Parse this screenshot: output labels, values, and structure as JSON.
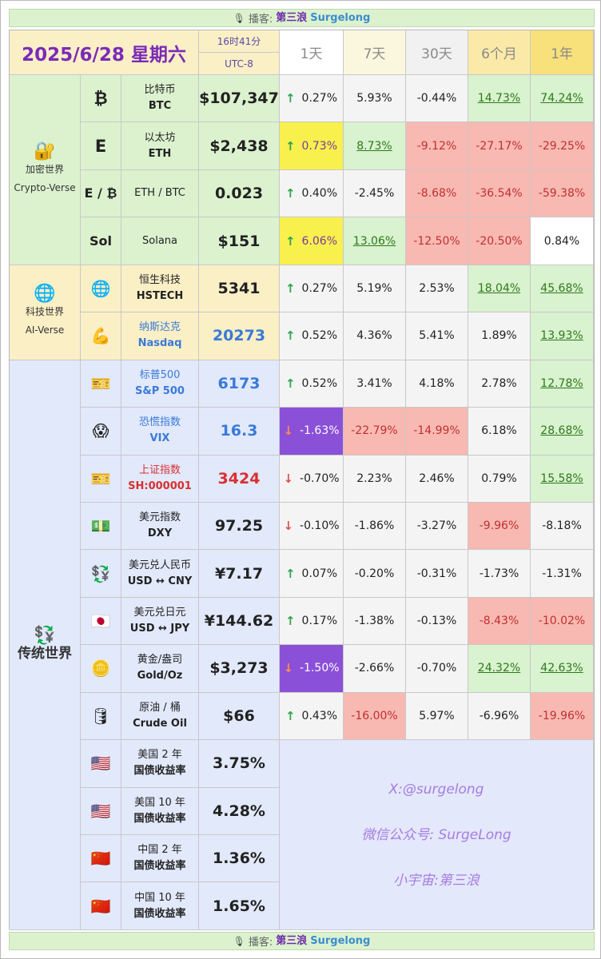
{
  "banner": {
    "mic": "🎙",
    "label": "播客:",
    "name": "第三浪",
    "en": "Surgelong"
  },
  "header": {
    "date": "2025/6/28 星期六",
    "time": "16时41分",
    "tz": "UTC-8",
    "periods": [
      "1天",
      "7天",
      "30天",
      "6个月",
      "1年"
    ]
  },
  "sections": {
    "crypto": {
      "icon": "🔐",
      "cn": "加密世界",
      "en": "Crypto-Verse"
    },
    "ai": {
      "icon": "🌐",
      "cn": "科技世界",
      "en": "AI-Verse"
    },
    "trad": {
      "icon": "💱",
      "cn": "传统世界"
    }
  },
  "rows": [
    {
      "icon": "₿",
      "cn": "比特币",
      "en": "BTC",
      "value": "$107,347",
      "changes": [
        "0.27%",
        "5.93%",
        "-0.44%",
        "14.73%",
        "74.24%"
      ],
      "dir": "up"
    },
    {
      "icon": "E",
      "cn": "以太坊",
      "en": "ETH",
      "value": "$2,438",
      "changes": [
        "0.73%",
        "8.73%",
        "-9.12%",
        "-27.17%",
        "-29.25%"
      ],
      "dir": "up"
    },
    {
      "icon": "E / ₿",
      "cn": "ETH / BTC",
      "en": "",
      "value": "0.023",
      "changes": [
        "0.40%",
        "-2.45%",
        "-8.68%",
        "-36.54%",
        "-59.38%"
      ],
      "dir": "up"
    },
    {
      "icon": "Sol",
      "cn": "Solana",
      "en": "",
      "value": "$151",
      "changes": [
        "6.06%",
        "13.06%",
        "-12.50%",
        "-20.50%",
        "0.84%"
      ],
      "dir": "up"
    },
    {
      "icon": "🌐",
      "cn": "恒生科技",
      "en": "HSTECH",
      "value": "5341",
      "changes": [
        "0.27%",
        "5.19%",
        "2.53%",
        "18.04%",
        "45.68%"
      ],
      "dir": "up"
    },
    {
      "icon": "💪",
      "cn": "纳斯达克",
      "en": "Nasdaq",
      "value": "20273",
      "changes": [
        "0.52%",
        "4.36%",
        "5.41%",
        "1.89%",
        "13.93%"
      ],
      "dir": "up"
    },
    {
      "icon": "🎫",
      "cn": "标普500",
      "en": "S&P 500",
      "value": "6173",
      "changes": [
        "0.52%",
        "3.41%",
        "4.18%",
        "2.78%",
        "12.78%"
      ],
      "dir": "up"
    },
    {
      "icon": "😱",
      "cn": "恐慌指数",
      "en": "VIX",
      "value": "16.3",
      "changes": [
        "-1.63%",
        "-22.79%",
        "-14.99%",
        "6.18%",
        "28.68%"
      ],
      "dir": "down"
    },
    {
      "icon": "🎫",
      "cn": "上证指数",
      "en": "SH:000001",
      "value": "3424",
      "changes": [
        "-0.70%",
        "2.23%",
        "2.46%",
        "0.79%",
        "15.58%"
      ],
      "dir": "down"
    },
    {
      "icon": "💵",
      "cn": "美元指数",
      "en": "DXY",
      "value": "97.25",
      "changes": [
        "-0.10%",
        "-1.86%",
        "-3.27%",
        "-9.96%",
        "-8.18%"
      ],
      "dir": "down"
    },
    {
      "icon": "💱",
      "cn": "美元兑人民币",
      "en": "USD ↔ CNY",
      "value": "¥7.17",
      "changes": [
        "0.07%",
        "-0.20%",
        "-0.31%",
        "-1.73%",
        "-1.31%"
      ],
      "dir": "up"
    },
    {
      "icon": "🇯🇵",
      "cn": "美元兑日元",
      "en": "USD ↔ JPY",
      "value": "¥144.62",
      "changes": [
        "0.17%",
        "-1.38%",
        "-0.13%",
        "-8.43%",
        "-10.02%"
      ],
      "dir": "up"
    },
    {
      "icon": "🪙",
      "cn": "黄金/盎司",
      "en": "Gold/Oz",
      "value": "$3,273",
      "changes": [
        "-1.50%",
        "-2.66%",
        "-0.70%",
        "24.32%",
        "42.63%"
      ],
      "dir": "down"
    },
    {
      "icon": "🛢",
      "cn": "原油 / 桶",
      "en": "Crude Oil",
      "value": "$66",
      "changes": [
        "0.43%",
        "-16.00%",
        "5.97%",
        "-6.96%",
        "-19.96%"
      ],
      "dir": "up"
    },
    {
      "icon": "🇺🇸",
      "cn": "美国 2 年",
      "en": "国债收益率",
      "value": "3.75%",
      "changes": [],
      "dir": ""
    },
    {
      "icon": "🇺🇸",
      "cn": "美国 10 年",
      "en": "国债收益率",
      "value": "4.28%",
      "changes": [],
      "dir": ""
    },
    {
      "icon": "🇨🇳",
      "cn": "中国 2 年",
      "en": "国债收益率",
      "value": "1.36%",
      "changes": [],
      "dir": ""
    },
    {
      "icon": "🇨🇳",
      "cn": "中国 10 年",
      "en": "国债收益率",
      "value": "1.65%",
      "changes": [],
      "dir": ""
    }
  ],
  "watermark": {
    "x": "X:@surgelong",
    "wechat": "微信公众号: SurgeLong",
    "universe": "小宇宙:第三浪"
  },
  "colors": {
    "green": "#d9f2cf",
    "red": "#f8b9b2",
    "yellow": "#f8f04c",
    "purple": "#8a50d8"
  }
}
